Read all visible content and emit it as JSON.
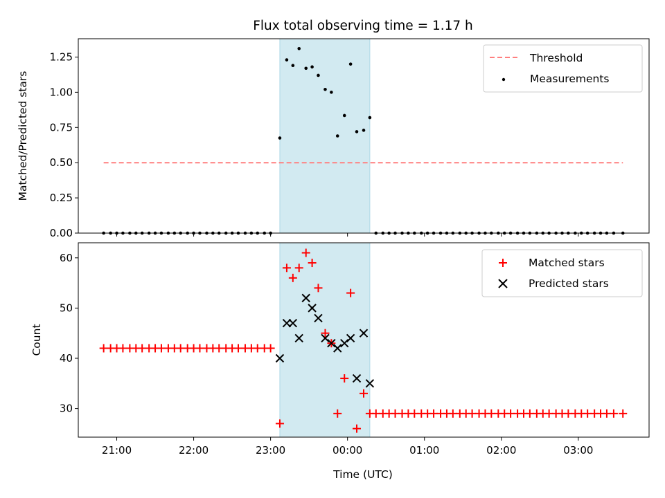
{
  "chart_data": {
    "title": "Flux total observing time = 1.17 h",
    "xlabel": "Time (UTC)",
    "x_tick_labels": [
      "21:00",
      "22:00",
      "23:00",
      "00:00",
      "01:00",
      "02:00",
      "03:00"
    ],
    "x_ticks_hours": [
      21,
      22,
      23,
      24,
      25,
      26,
      27
    ],
    "x_range_hours": [
      20.5,
      27.92
    ],
    "shaded_interval_hours": [
      23.12,
      24.29
    ],
    "shade_color": "#add8e6",
    "panels": [
      {
        "type": "scatter",
        "ylabel": "Matched/Predicted stars",
        "ylim": [
          0,
          1.38
        ],
        "y_ticks": [
          0.0,
          0.25,
          0.5,
          0.75,
          1.0,
          1.25
        ],
        "y_tick_labels": [
          "0.00",
          "0.25",
          "0.50",
          "0.75",
          "1.00",
          "1.25"
        ],
        "legend_position": "upper right",
        "threshold": {
          "name": "Threshold",
          "value": 0.5,
          "x_range": [
            20.83,
            27.58
          ],
          "color": "#ff7f7f"
        },
        "series": [
          {
            "name": "Measurements",
            "color": "#000000",
            "marker": "dot",
            "x": [
              20.83,
              20.92,
              21.0,
              21.08,
              21.17,
              21.25,
              21.33,
              21.42,
              21.5,
              21.58,
              21.67,
              21.75,
              21.83,
              21.92,
              22.0,
              22.08,
              22.17,
              22.25,
              22.33,
              22.42,
              22.5,
              22.58,
              22.67,
              22.75,
              22.83,
              22.92,
              23.0,
              23.12,
              23.21,
              23.29,
              23.37,
              23.46,
              23.54,
              23.62,
              23.71,
              23.79,
              23.87,
              23.96,
              24.04,
              24.12,
              24.21,
              24.29,
              24.37,
              24.46,
              24.54,
              24.62,
              24.71,
              24.79,
              24.87,
              24.96,
              25.04,
              25.12,
              25.21,
              25.29,
              25.37,
              25.46,
              25.54,
              25.62,
              25.71,
              25.79,
              25.87,
              25.96,
              26.04,
              26.12,
              26.21,
              26.29,
              26.37,
              26.46,
              26.54,
              26.62,
              26.71,
              26.79,
              26.87,
              26.96,
              27.04,
              27.12,
              27.21,
              27.29,
              27.37,
              27.46,
              27.58
            ],
            "y": [
              0,
              0,
              0,
              0,
              0,
              0,
              0,
              0,
              0,
              0,
              0,
              0,
              0,
              0,
              0,
              0,
              0,
              0,
              0,
              0,
              0,
              0,
              0,
              0,
              0,
              0,
              0,
              0.675,
              1.23,
              1.19,
              1.31,
              1.17,
              1.18,
              1.12,
              1.02,
              1.0,
              0.69,
              0.835,
              1.2,
              0.72,
              0.73,
              0.82,
              0,
              0,
              0,
              0,
              0,
              0,
              0,
              0,
              0,
              0,
              0,
              0,
              0,
              0,
              0,
              0,
              0,
              0,
              0,
              0,
              0,
              0,
              0,
              0,
              0,
              0,
              0,
              0,
              0,
              0,
              0,
              0,
              0,
              0,
              0,
              0,
              0,
              0,
              0
            ]
          }
        ]
      },
      {
        "type": "scatter",
        "ylabel": "Count",
        "ylim": [
          24.3,
          63.0
        ],
        "y_ticks": [
          30,
          40,
          50,
          60
        ],
        "y_tick_labels": [
          "30",
          "40",
          "50",
          "60"
        ],
        "legend_position": "upper right",
        "series": [
          {
            "name": "Matched stars",
            "color": "#ff0000",
            "marker": "plus",
            "x": [
              20.83,
              20.92,
              21.0,
              21.08,
              21.17,
              21.25,
              21.33,
              21.42,
              21.5,
              21.58,
              21.67,
              21.75,
              21.83,
              21.92,
              22.0,
              22.08,
              22.17,
              22.25,
              22.33,
              22.42,
              22.5,
              22.58,
              22.67,
              22.75,
              22.83,
              22.92,
              23.0,
              23.12,
              23.21,
              23.29,
              23.37,
              23.46,
              23.54,
              23.62,
              23.71,
              23.79,
              23.87,
              23.96,
              24.04,
              24.12,
              24.21,
              24.29,
              24.37,
              24.46,
              24.54,
              24.62,
              24.71,
              24.79,
              24.87,
              24.96,
              25.04,
              25.12,
              25.21,
              25.29,
              25.37,
              25.46,
              25.54,
              25.62,
              25.71,
              25.79,
              25.87,
              25.96,
              26.04,
              26.12,
              26.21,
              26.29,
              26.37,
              26.46,
              26.54,
              26.62,
              26.71,
              26.79,
              26.87,
              26.96,
              27.04,
              27.12,
              27.21,
              27.29,
              27.37,
              27.46,
              27.58
            ],
            "y": [
              42,
              42,
              42,
              42,
              42,
              42,
              42,
              42,
              42,
              42,
              42,
              42,
              42,
              42,
              42,
              42,
              42,
              42,
              42,
              42,
              42,
              42,
              42,
              42,
              42,
              42,
              42,
              27,
              58,
              56,
              58,
              61,
              59,
              54,
              45,
              43,
              29,
              36,
              53,
              26,
              33,
              29,
              29,
              29,
              29,
              29,
              29,
              29,
              29,
              29,
              29,
              29,
              29,
              29,
              29,
              29,
              29,
              29,
              29,
              29,
              29,
              29,
              29,
              29,
              29,
              29,
              29,
              29,
              29,
              29,
              29,
              29,
              29,
              29,
              29,
              29,
              29,
              29,
              29,
              29,
              29
            ]
          },
          {
            "name": "Predicted stars",
            "color": "#000000",
            "marker": "x",
            "x": [
              23.12,
              23.21,
              23.29,
              23.37,
              23.46,
              23.54,
              23.62,
              23.71,
              23.79,
              23.87,
              23.96,
              24.04,
              24.12,
              24.21,
              24.29
            ],
            "y": [
              40,
              47,
              47,
              44,
              52,
              50,
              48,
              44,
              43,
              42,
              43,
              44,
              36,
              45,
              35
            ]
          }
        ]
      }
    ]
  }
}
